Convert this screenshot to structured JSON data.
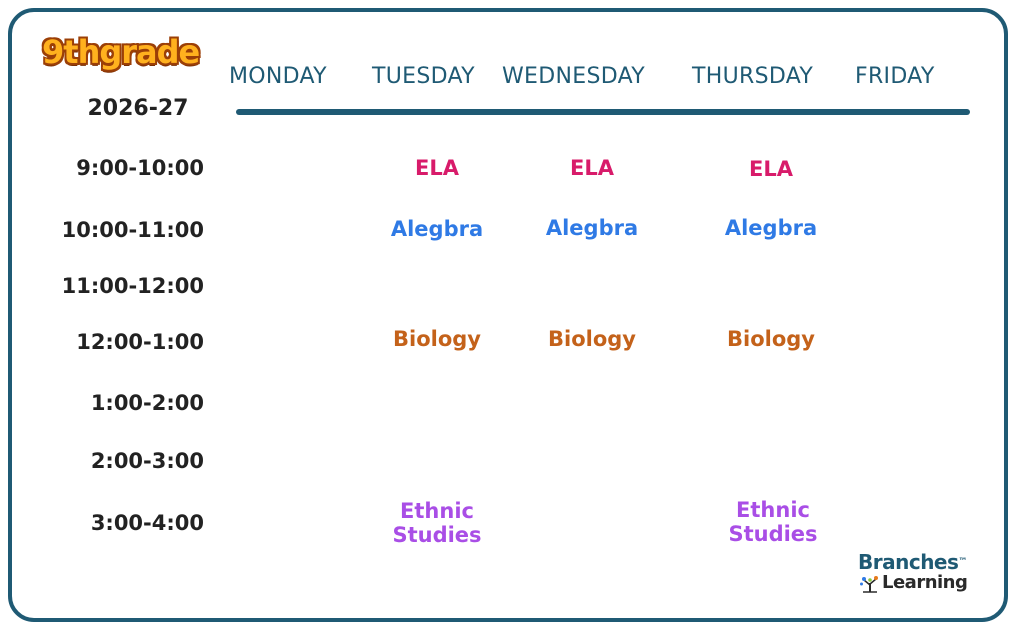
{
  "header": {
    "logo_text": "9thgrade",
    "year": "2026-27"
  },
  "days": [
    "MONDAY",
    "TUESDAY",
    "WEDNESDAY",
    "THURSDAY",
    "FRIDAY"
  ],
  "times": [
    "9:00-10:00",
    "10:00-11:00",
    "11:00-12:00",
    "12:00-1:00",
    "1:00-2:00",
    "2:00-3:00",
    "3:00-4:00"
  ],
  "subjects": {
    "ela": "ELA",
    "algebra": "Alegbra",
    "biology": "Biology",
    "ethnic_studies_line1": "Ethnic",
    "ethnic_studies_line2": "Studies"
  },
  "colors": {
    "ela": "#d81b6a",
    "algebra": "#2f7ae5",
    "biology": "#c4621a",
    "ethnic_studies": "#a94ee6",
    "accent": "#1f5a74"
  },
  "brand": {
    "line1": "Branches",
    "line2": "Learning",
    "trademark": "™"
  }
}
